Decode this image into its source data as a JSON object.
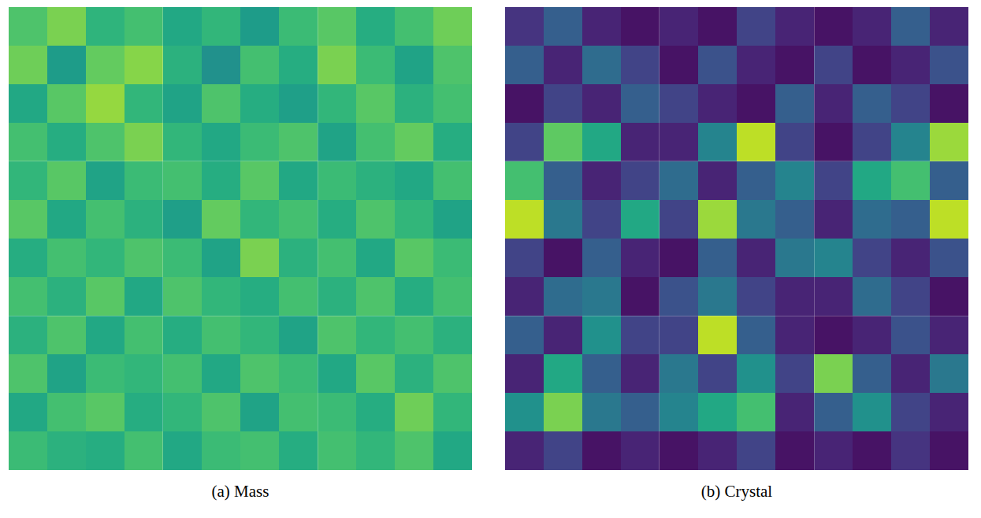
{
  "chart_data": [
    {
      "type": "heatmap",
      "title": "(a) Mass",
      "color": "viridis",
      "tick_labels": false,
      "clim": [
        0,
        1
      ],
      "cells": [
        [
          0.72,
          0.8,
          0.65,
          0.7,
          0.6,
          0.66,
          0.55,
          0.68,
          0.74,
          0.62,
          0.7,
          0.78
        ],
        [
          0.78,
          0.55,
          0.76,
          0.82,
          0.64,
          0.5,
          0.7,
          0.62,
          0.8,
          0.68,
          0.58,
          0.72
        ],
        [
          0.6,
          0.74,
          0.84,
          0.66,
          0.58,
          0.72,
          0.62,
          0.56,
          0.66,
          0.74,
          0.64,
          0.7
        ],
        [
          0.7,
          0.62,
          0.72,
          0.8,
          0.66,
          0.6,
          0.68,
          0.72,
          0.58,
          0.7,
          0.76,
          0.62
        ],
        [
          0.66,
          0.74,
          0.58,
          0.68,
          0.7,
          0.62,
          0.74,
          0.6,
          0.68,
          0.64,
          0.6,
          0.7
        ],
        [
          0.74,
          0.6,
          0.7,
          0.64,
          0.56,
          0.76,
          0.66,
          0.7,
          0.62,
          0.72,
          0.66,
          0.58
        ],
        [
          0.62,
          0.7,
          0.66,
          0.72,
          0.68,
          0.58,
          0.8,
          0.64,
          0.7,
          0.6,
          0.74,
          0.68
        ],
        [
          0.7,
          0.64,
          0.74,
          0.6,
          0.72,
          0.66,
          0.62,
          0.7,
          0.64,
          0.72,
          0.62,
          0.7
        ],
        [
          0.64,
          0.72,
          0.6,
          0.7,
          0.62,
          0.7,
          0.66,
          0.58,
          0.72,
          0.66,
          0.7,
          0.64
        ],
        [
          0.72,
          0.58,
          0.68,
          0.66,
          0.7,
          0.6,
          0.72,
          0.68,
          0.6,
          0.74,
          0.64,
          0.72
        ],
        [
          0.6,
          0.7,
          0.74,
          0.62,
          0.66,
          0.72,
          0.58,
          0.7,
          0.68,
          0.62,
          0.78,
          0.66
        ],
        [
          0.68,
          0.64,
          0.62,
          0.7,
          0.6,
          0.68,
          0.7,
          0.62,
          0.7,
          0.66,
          0.72,
          0.6
        ]
      ]
    },
    {
      "type": "heatmap",
      "title": "(b) Crystal",
      "color": "viridis",
      "tick_labels": false,
      "clim": [
        0,
        1
      ],
      "cells": [
        [
          0.15,
          0.3,
          0.1,
          0.05,
          0.1,
          0.05,
          0.2,
          0.1,
          0.05,
          0.1,
          0.3,
          0.1
        ],
        [
          0.3,
          0.1,
          0.35,
          0.2,
          0.05,
          0.25,
          0.1,
          0.05,
          0.2,
          0.05,
          0.1,
          0.25
        ],
        [
          0.05,
          0.2,
          0.1,
          0.3,
          0.2,
          0.1,
          0.05,
          0.3,
          0.1,
          0.3,
          0.2,
          0.05
        ],
        [
          0.2,
          0.75,
          0.6,
          0.1,
          0.1,
          0.45,
          0.9,
          0.2,
          0.05,
          0.2,
          0.45,
          0.85
        ],
        [
          0.7,
          0.3,
          0.1,
          0.2,
          0.35,
          0.1,
          0.3,
          0.45,
          0.2,
          0.6,
          0.7,
          0.3
        ],
        [
          0.9,
          0.4,
          0.2,
          0.6,
          0.2,
          0.85,
          0.4,
          0.3,
          0.1,
          0.35,
          0.3,
          0.9
        ],
        [
          0.2,
          0.05,
          0.3,
          0.1,
          0.05,
          0.3,
          0.1,
          0.4,
          0.45,
          0.2,
          0.1,
          0.25
        ],
        [
          0.1,
          0.35,
          0.4,
          0.05,
          0.25,
          0.4,
          0.2,
          0.1,
          0.1,
          0.35,
          0.2,
          0.05
        ],
        [
          0.3,
          0.1,
          0.5,
          0.2,
          0.2,
          0.9,
          0.3,
          0.1,
          0.05,
          0.1,
          0.25,
          0.1
        ],
        [
          0.1,
          0.6,
          0.3,
          0.1,
          0.4,
          0.2,
          0.5,
          0.2,
          0.8,
          0.3,
          0.1,
          0.4
        ],
        [
          0.5,
          0.8,
          0.4,
          0.3,
          0.45,
          0.6,
          0.7,
          0.1,
          0.3,
          0.5,
          0.2,
          0.1
        ],
        [
          0.1,
          0.2,
          0.05,
          0.1,
          0.05,
          0.1,
          0.2,
          0.05,
          0.1,
          0.05,
          0.15,
          0.05
        ]
      ]
    }
  ]
}
